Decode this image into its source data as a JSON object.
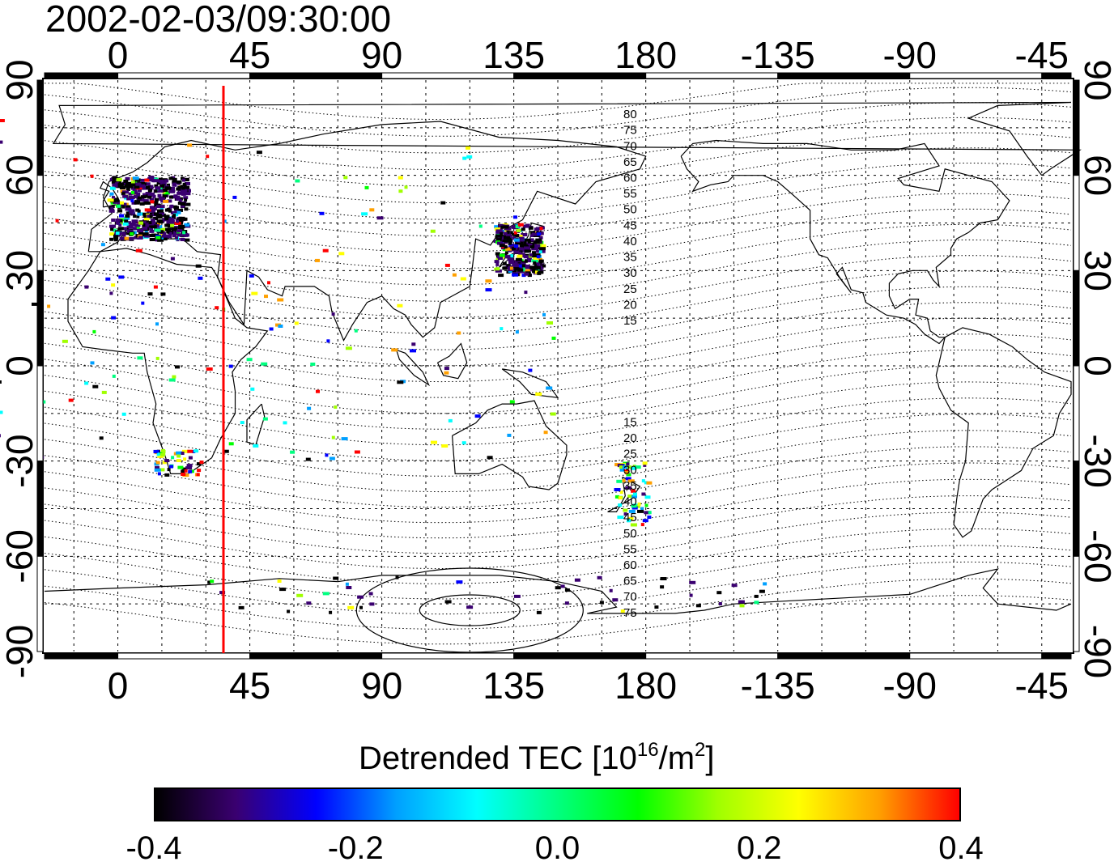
{
  "title": "2002-02-03/09:30:00",
  "map": {
    "lon_ticks": [
      "0",
      "45",
      "90",
      "135",
      "180",
      "-135",
      "-90",
      "-45"
    ],
    "lat_ticks_left": [
      "90",
      "60",
      "30",
      "0",
      "-30",
      "-60",
      "-90"
    ],
    "lat_ticks_right": [
      "90",
      "60",
      "30",
      "0",
      "-30",
      "-60",
      "-90"
    ],
    "lon_range": [
      -25,
      325
    ],
    "lat_range": [
      -90,
      90
    ],
    "marker_line": {
      "lon": 36,
      "color": "#ff0000"
    },
    "contour_labels_north": [
      "80",
      "75",
      "70",
      "65",
      "60",
      "55",
      "50",
      "45",
      "40",
      "35",
      "30",
      "25",
      "20",
      "15"
    ],
    "contour_labels_south": [
      "15",
      "20",
      "25",
      "30",
      "35",
      "40",
      "45",
      "50",
      "55",
      "60",
      "65",
      "70",
      "75"
    ]
  },
  "colorbar": {
    "title": "Detrended TEC  [10",
    "title_sup1": "16",
    "title_mid": "/m",
    "title_sup2": "2",
    "title_end": "]",
    "ticks": [
      "-0.4",
      "-0.2",
      "0.0",
      "0.2",
      "0.4"
    ],
    "range": [
      -0.4,
      0.4
    ],
    "colors": [
      "#000000",
      "#3a0070",
      "#0000ff",
      "#00a0ff",
      "#00ffff",
      "#00ff80",
      "#00ff00",
      "#a0ff00",
      "#ffff00",
      "#ffa000",
      "#ff0000"
    ]
  }
}
